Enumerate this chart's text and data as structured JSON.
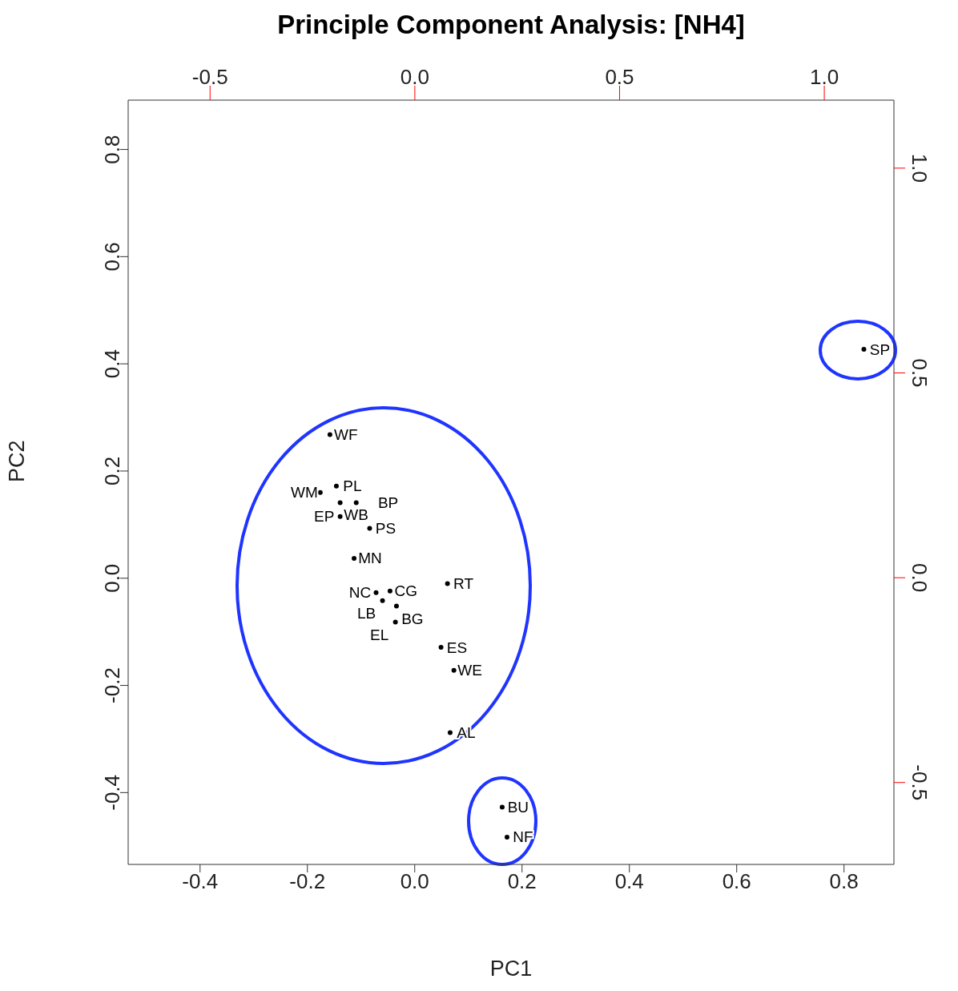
{
  "chart_data": {
    "type": "scatter",
    "title": "Principle Component Analysis: [NH4]",
    "xlabel": "PC1",
    "ylabel": "PC2",
    "marker": "circle",
    "xlim": [
      -0.534,
      0.893
    ],
    "ylim": [
      -0.534,
      0.892
    ],
    "xticks": [
      -0.4,
      -0.2,
      {
        "value": 0,
        "label": "0.0"
      },
      0.2,
      0.4,
      0.6,
      0.8
    ],
    "yticks": [
      -0.4,
      -0.2,
      {
        "value": 0,
        "label": "0.0"
      },
      0.2,
      0.4,
      0.6,
      0.8
    ],
    "x2lim": [
      -0.7,
      1.17
    ],
    "x2ticks": [
      -0.5,
      {
        "value": 0,
        "label": "0.0"
      },
      0.5,
      {
        "value": 1,
        "label": "1.0"
      }
    ],
    "y2lim": [
      -0.7,
      1.166
    ],
    "y2ticks": [
      -0.5,
      {
        "value": 0,
        "label": "0.0"
      },
      0.5,
      {
        "value": 1,
        "label": "1.0"
      }
    ],
    "series": [
      {
        "color": "#000000",
        "x": [
          0.837,
          -0.158,
          -0.176,
          -0.146,
          -0.139,
          -0.109,
          -0.139,
          -0.084,
          -0.113,
          -0.072,
          -0.046,
          -0.06,
          -0.034,
          -0.036,
          0.061,
          0.049,
          0.073,
          0.066,
          0.163,
          0.172
        ],
        "values": [
          0.427,
          0.268,
          0.16,
          0.172,
          0.141,
          0.141,
          0.115,
          0.093,
          0.037,
          -0.027,
          -0.024,
          -0.042,
          -0.052,
          -0.082,
          -0.01,
          -0.129,
          -0.172,
          -0.288,
          -0.427,
          -0.483
        ],
        "value_labels": [
          "SP",
          "WF",
          "WM",
          "PL",
          "WB",
          "BP",
          "EP",
          "PS",
          "MN",
          "NC",
          "CG",
          "LB",
          "BG",
          "EL",
          "RT",
          "ES",
          "WE",
          "AL",
          "BU",
          "NF"
        ]
      }
    ]
  }
}
